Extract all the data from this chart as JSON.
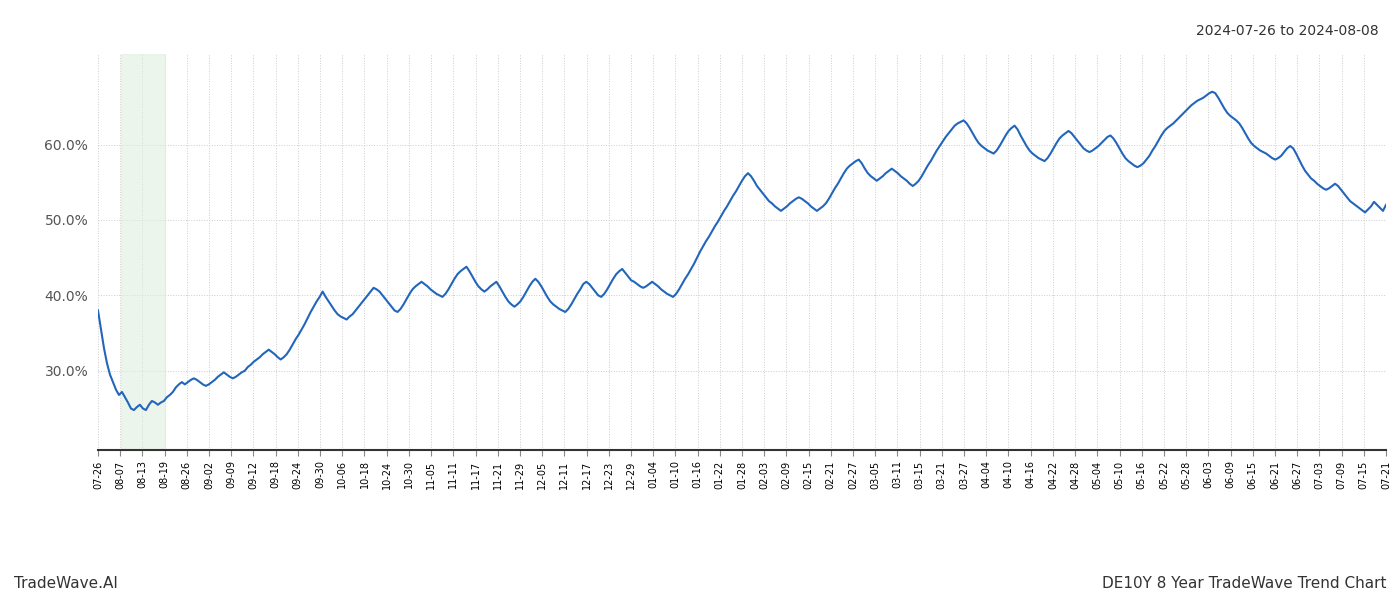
{
  "title_top_right": "2024-07-26 to 2024-08-08",
  "title_bottom_left": "TradeWave.AI",
  "title_bottom_right": "DE10Y 8 Year TradeWave Trend Chart",
  "line_color": "#2266bb",
  "line_width": 1.5,
  "highlight_color": "#ddeedd",
  "highlight_alpha": 0.55,
  "background_color": "#ffffff",
  "grid_color": "#cccccc",
  "ylim": [
    0.195,
    0.72
  ],
  "yticks": [
    0.3,
    0.4,
    0.5,
    0.6
  ],
  "highlight_xstart": 0.018,
  "highlight_xend": 0.052,
  "xtick_labels": [
    "07-26",
    "08-07",
    "08-13",
    "08-19",
    "08-26",
    "09-02",
    "09-09",
    "09-12",
    "09-18",
    "09-24",
    "09-30",
    "10-06",
    "10-18",
    "10-24",
    "10-30",
    "11-05",
    "11-11",
    "11-17",
    "11-21",
    "11-29",
    "12-05",
    "12-11",
    "12-17",
    "12-23",
    "12-29",
    "01-04",
    "01-10",
    "01-16",
    "01-22",
    "01-28",
    "02-03",
    "02-09",
    "02-15",
    "02-21",
    "02-27",
    "03-05",
    "03-11",
    "03-15",
    "03-21",
    "03-27",
    "04-04",
    "04-10",
    "04-16",
    "04-22",
    "04-28",
    "05-04",
    "05-10",
    "05-16",
    "05-22",
    "05-28",
    "06-03",
    "06-09",
    "06-15",
    "06-21",
    "06-27",
    "07-03",
    "07-09",
    "07-15",
    "07-21"
  ],
  "y_values": [
    0.38,
    0.355,
    0.33,
    0.31,
    0.295,
    0.285,
    0.275,
    0.268,
    0.272,
    0.265,
    0.258,
    0.25,
    0.248,
    0.252,
    0.255,
    0.25,
    0.248,
    0.255,
    0.26,
    0.258,
    0.255,
    0.258,
    0.26,
    0.265,
    0.268,
    0.272,
    0.278,
    0.282,
    0.285,
    0.282,
    0.285,
    0.288,
    0.29,
    0.288,
    0.285,
    0.282,
    0.28,
    0.282,
    0.285,
    0.288,
    0.292,
    0.295,
    0.298,
    0.295,
    0.292,
    0.29,
    0.292,
    0.295,
    0.298,
    0.3,
    0.305,
    0.308,
    0.312,
    0.315,
    0.318,
    0.322,
    0.325,
    0.328,
    0.325,
    0.322,
    0.318,
    0.315,
    0.318,
    0.322,
    0.328,
    0.335,
    0.342,
    0.348,
    0.355,
    0.362,
    0.37,
    0.378,
    0.385,
    0.392,
    0.398,
    0.405,
    0.398,
    0.392,
    0.386,
    0.38,
    0.375,
    0.372,
    0.37,
    0.368,
    0.372,
    0.375,
    0.38,
    0.385,
    0.39,
    0.395,
    0.4,
    0.405,
    0.41,
    0.408,
    0.405,
    0.4,
    0.395,
    0.39,
    0.385,
    0.38,
    0.378,
    0.382,
    0.388,
    0.395,
    0.402,
    0.408,
    0.412,
    0.415,
    0.418,
    0.415,
    0.412,
    0.408,
    0.405,
    0.402,
    0.4,
    0.398,
    0.402,
    0.408,
    0.415,
    0.422,
    0.428,
    0.432,
    0.435,
    0.438,
    0.432,
    0.425,
    0.418,
    0.412,
    0.408,
    0.405,
    0.408,
    0.412,
    0.415,
    0.418,
    0.412,
    0.405,
    0.398,
    0.392,
    0.388,
    0.385,
    0.388,
    0.392,
    0.398,
    0.405,
    0.412,
    0.418,
    0.422,
    0.418,
    0.412,
    0.405,
    0.398,
    0.392,
    0.388,
    0.385,
    0.382,
    0.38,
    0.378,
    0.382,
    0.388,
    0.395,
    0.402,
    0.408,
    0.415,
    0.418,
    0.415,
    0.41,
    0.405,
    0.4,
    0.398,
    0.402,
    0.408,
    0.415,
    0.422,
    0.428,
    0.432,
    0.435,
    0.43,
    0.425,
    0.42,
    0.418,
    0.415,
    0.412,
    0.41,
    0.412,
    0.415,
    0.418,
    0.415,
    0.412,
    0.408,
    0.405,
    0.402,
    0.4,
    0.398,
    0.402,
    0.408,
    0.415,
    0.422,
    0.428,
    0.435,
    0.442,
    0.45,
    0.458,
    0.465,
    0.472,
    0.478,
    0.485,
    0.492,
    0.498,
    0.505,
    0.512,
    0.518,
    0.525,
    0.532,
    0.538,
    0.545,
    0.552,
    0.558,
    0.562,
    0.558,
    0.552,
    0.545,
    0.54,
    0.535,
    0.53,
    0.525,
    0.522,
    0.518,
    0.515,
    0.512,
    0.515,
    0.518,
    0.522,
    0.525,
    0.528,
    0.53,
    0.528,
    0.525,
    0.522,
    0.518,
    0.515,
    0.512,
    0.515,
    0.518,
    0.522,
    0.528,
    0.535,
    0.542,
    0.548,
    0.555,
    0.562,
    0.568,
    0.572,
    0.575,
    0.578,
    0.58,
    0.575,
    0.568,
    0.562,
    0.558,
    0.555,
    0.552,
    0.555,
    0.558,
    0.562,
    0.565,
    0.568,
    0.565,
    0.562,
    0.558,
    0.555,
    0.552,
    0.548,
    0.545,
    0.548,
    0.552,
    0.558,
    0.565,
    0.572,
    0.578,
    0.585,
    0.592,
    0.598,
    0.604,
    0.61,
    0.615,
    0.62,
    0.625,
    0.628,
    0.63,
    0.632,
    0.628,
    0.622,
    0.615,
    0.608,
    0.602,
    0.598,
    0.595,
    0.592,
    0.59,
    0.588,
    0.592,
    0.598,
    0.605,
    0.612,
    0.618,
    0.622,
    0.625,
    0.62,
    0.612,
    0.605,
    0.598,
    0.592,
    0.588,
    0.585,
    0.582,
    0.58,
    0.578,
    0.582,
    0.588,
    0.595,
    0.602,
    0.608,
    0.612,
    0.615,
    0.618,
    0.615,
    0.61,
    0.605,
    0.6,
    0.595,
    0.592,
    0.59,
    0.592,
    0.595,
    0.598,
    0.602,
    0.606,
    0.61,
    0.612,
    0.608,
    0.602,
    0.595,
    0.588,
    0.582,
    0.578,
    0.575,
    0.572,
    0.57,
    0.572,
    0.575,
    0.58,
    0.585,
    0.592,
    0.598,
    0.605,
    0.612,
    0.618,
    0.622,
    0.625,
    0.628,
    0.632,
    0.636,
    0.64,
    0.644,
    0.648,
    0.652,
    0.655,
    0.658,
    0.66,
    0.662,
    0.665,
    0.668,
    0.67,
    0.668,
    0.662,
    0.655,
    0.648,
    0.642,
    0.638,
    0.635,
    0.632,
    0.628,
    0.622,
    0.615,
    0.608,
    0.602,
    0.598,
    0.595,
    0.592,
    0.59,
    0.588,
    0.585,
    0.582,
    0.58,
    0.582,
    0.585,
    0.59,
    0.595,
    0.598,
    0.595,
    0.588,
    0.58,
    0.572,
    0.565,
    0.56,
    0.555,
    0.552,
    0.548,
    0.545,
    0.542,
    0.54,
    0.542,
    0.545,
    0.548,
    0.545,
    0.54,
    0.535,
    0.53,
    0.525,
    0.522,
    0.519,
    0.516,
    0.513,
    0.51,
    0.514,
    0.518,
    0.524,
    0.52,
    0.516,
    0.512,
    0.52
  ]
}
